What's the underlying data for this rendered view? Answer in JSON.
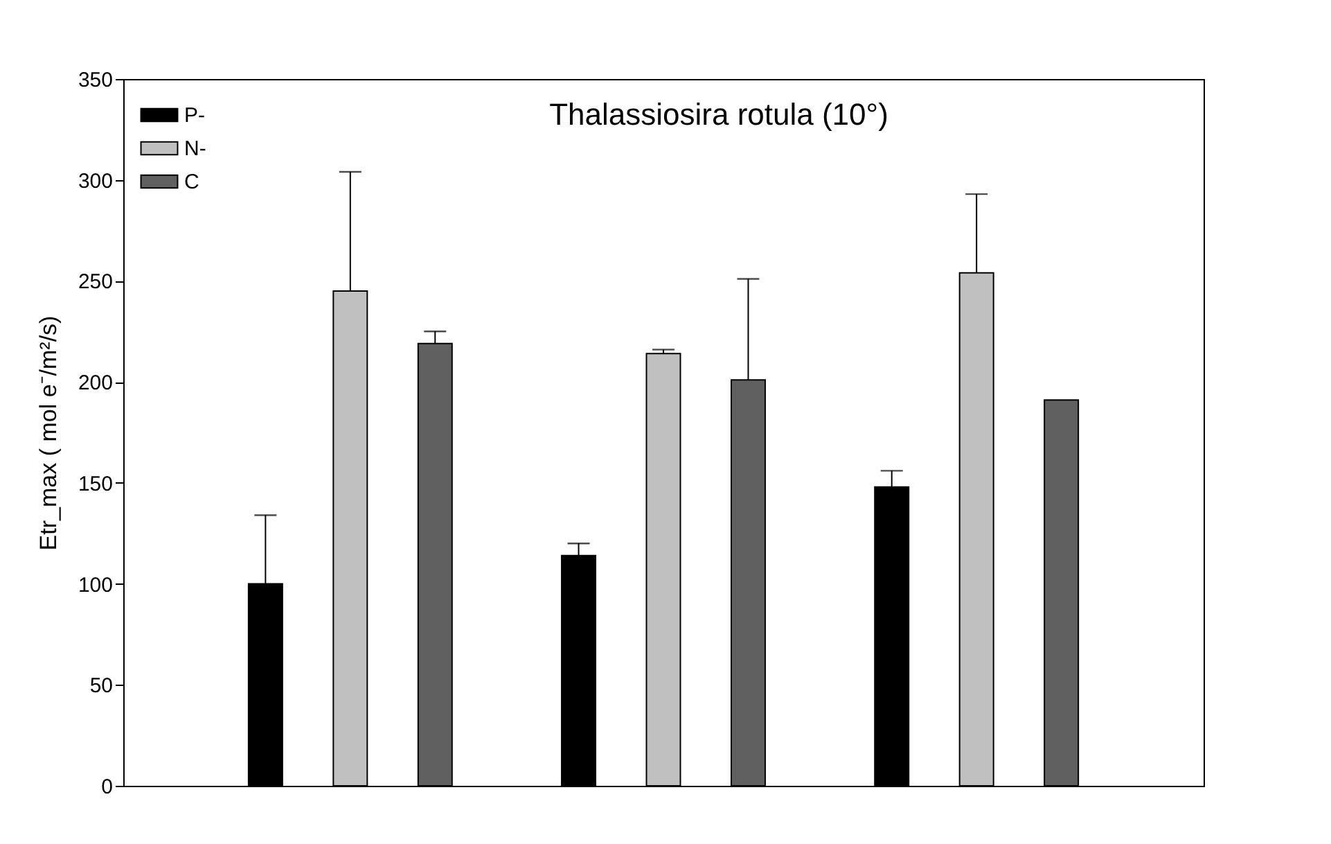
{
  "chart_data": {
    "type": "bar",
    "title": "Thalassiosira rotula (10°)",
    "ylabel": "Etr_max ( mol e⁻/m²/s)",
    "categories": [
      null,
      null,
      null
    ],
    "series": [
      {
        "name": "P-",
        "color": "#000000",
        "values": [
          100,
          114,
          148
        ],
        "errors": [
          [
            100,
            134
          ],
          [
            114,
            120
          ],
          [
            148,
            156
          ]
        ]
      },
      {
        "name": "N-",
        "color": "#c0c0c0",
        "values": [
          245,
          214,
          254
        ],
        "errors": [
          [
            245,
            304
          ],
          [
            214,
            216
          ],
          [
            254,
            293
          ]
        ]
      },
      {
        "name": "C",
        "color": "#606060",
        "values": [
          219,
          201,
          191
        ],
        "errors": [
          [
            219,
            225
          ],
          [
            201,
            251
          ],
          null
        ]
      }
    ],
    "ylim": [
      0,
      350
    ],
    "yticks": [
      0,
      50,
      100,
      150,
      200,
      250,
      300,
      350
    ],
    "grid": false,
    "legend": "top left"
  }
}
